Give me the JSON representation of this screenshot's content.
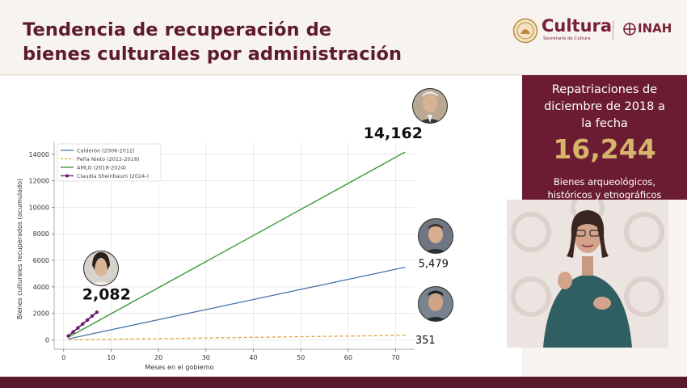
{
  "header": {
    "title_line1": "Tendencia de recuperación de",
    "title_line2": "bienes culturales por administración"
  },
  "logos": {
    "cultura": "Cultura",
    "cultura_sub": "Secretaría de Cultura",
    "inah": "INAH"
  },
  "side_panel": {
    "heading_line1": "Repatriaciones de",
    "heading_line2": "diciembre de 2018 a",
    "heading_line3": "la fecha",
    "number": "16,244",
    "caption_line1": "Bienes arqueológicos,",
    "caption_line2": "históricos y etnográficos"
  },
  "colors": {
    "brand": "#6b1c33",
    "gold": "#d6b46a",
    "calderon": "#4a78a8",
    "pena_nieto": "#e0a23a",
    "amlo": "#2e8f2a",
    "sheinbaum": "#6a1b6e"
  },
  "chart_data": {
    "type": "line",
    "title": "",
    "xlabel": "Meses en el gobierno",
    "ylabel": "Bienes culturales recuperados (acumulado)",
    "xlim": [
      -2,
      74
    ],
    "ylim": [
      -700,
      14900
    ],
    "xticks": [
      0,
      10,
      20,
      30,
      40,
      50,
      60,
      70
    ],
    "yticks": [
      0,
      2000,
      4000,
      6000,
      8000,
      10000,
      12000,
      14000
    ],
    "xtick_labels": [
      "0",
      "10",
      "20",
      "30",
      "40",
      "50",
      "60",
      "70"
    ],
    "ytick_labels": [
      "0",
      "2000",
      "4000",
      "6000",
      "8000",
      "10000",
      "12000",
      "14000"
    ],
    "grid": true,
    "legend_position": "top-left",
    "series": [
      {
        "name": "Calderón (2006-2012)",
        "color": "#4a78a8",
        "style": "solid",
        "marker": false,
        "points": [
          [
            1,
            80
          ],
          [
            72,
            5479
          ]
        ]
      },
      {
        "name": "Peña Nieto (2012-2018)",
        "color": "#e0a23a",
        "style": "dashed",
        "marker": false,
        "points": [
          [
            1,
            5
          ],
          [
            72,
            351
          ]
        ]
      },
      {
        "name": "AMLO (2018-2024)",
        "color": "#2e8f2a",
        "style": "solid",
        "marker": false,
        "points": [
          [
            1,
            200
          ],
          [
            72,
            14162
          ]
        ]
      },
      {
        "name": "Claudia Sheinbaum (2024-)",
        "color": "#6a1b6e",
        "style": "solid",
        "marker": true,
        "points": [
          [
            1,
            300
          ],
          [
            2,
            600
          ],
          [
            3,
            900
          ],
          [
            4,
            1200
          ],
          [
            5,
            1500
          ],
          [
            6,
            1800
          ],
          [
            7,
            2082
          ]
        ]
      }
    ],
    "annotations": [
      {
        "text": "14,162",
        "series": 2,
        "style": "bold"
      },
      {
        "text": "5,479",
        "series": 0,
        "style": "normal"
      },
      {
        "text": "351",
        "series": 1,
        "style": "normal"
      },
      {
        "text": "2,082",
        "series": 3,
        "style": "bold"
      }
    ]
  }
}
